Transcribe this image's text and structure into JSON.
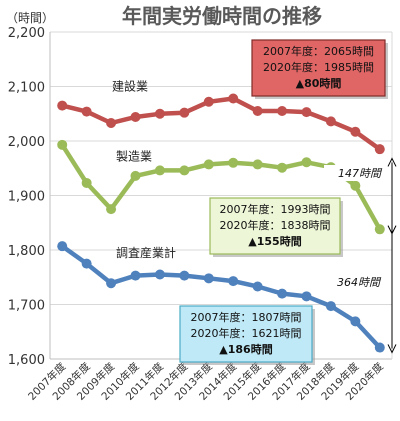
{
  "chart_data": {
    "type": "line",
    "title": "年間実労働時間の推移",
    "unit": "（時間）",
    "ylim": [
      1600,
      2200
    ],
    "yticks": [
      "1,600",
      "1,700",
      "1,800",
      "1,900",
      "2,000",
      "2,100",
      "2,200"
    ],
    "ytick_values": [
      1600,
      1700,
      1800,
      1900,
      2000,
      2100,
      2200
    ],
    "grid": true,
    "categories": [
      "2007年度",
      "2008年度",
      "2009年度",
      "2010年度",
      "2011年度",
      "2012年度",
      "2013年度",
      "2014年度",
      "2015年度",
      "2016年度",
      "2017年度",
      "2018年度",
      "2019年度",
      "2020年度"
    ],
    "series": [
      {
        "name": "建設業",
        "color": "#c0504d",
        "values": [
          2065,
          2054,
          2033,
          2044,
          2050,
          2052,
          2072,
          2078,
          2055,
          2055,
          2053,
          2036,
          2017,
          1985
        ]
      },
      {
        "name": "製造業",
        "color": "#9bbb59",
        "values": [
          1993,
          1923,
          1875,
          1936,
          1946,
          1946,
          1957,
          1960,
          1957,
          1951,
          1961,
          1952,
          1918,
          1838
        ]
      },
      {
        "name": "調査産業計",
        "color": "#4f81bd",
        "values": [
          1807,
          1775,
          1739,
          1753,
          1755,
          1753,
          1748,
          1743,
          1733,
          1720,
          1715,
          1697,
          1669,
          1621
        ]
      }
    ],
    "annotations": [
      {
        "lines": [
          "2007年度：2065時間",
          "2020年度：1985時間",
          "▲80時間"
        ],
        "fill": "#e06666",
        "stroke": "#7f2a28"
      },
      {
        "lines": [
          "2007年度：1993時間",
          "2020年度：1838時間",
          "▲155時間"
        ],
        "fill": "#eef6d8",
        "stroke": "#9bbb59"
      },
      {
        "lines": [
          "2007年度：1807時間",
          "2020年度：1621時間",
          "▲186時間"
        ],
        "fill": "#bfe9f7",
        "stroke": "#4bacc6"
      }
    ],
    "gaps": [
      "147時間",
      "364時間"
    ]
  }
}
